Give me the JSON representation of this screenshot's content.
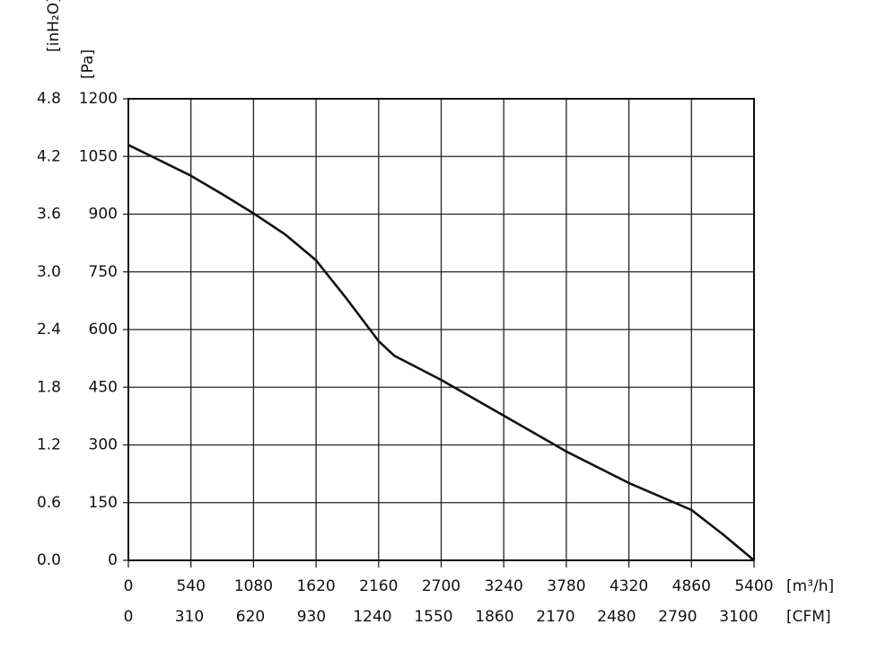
{
  "chart_data": {
    "type": "line",
    "x_label": "[m³/h]",
    "x2_label": "[CFM]",
    "y_label": "[Pa]",
    "y2_label": "[inH₂O]",
    "xlim": [
      0,
      5400
    ],
    "xticks": [
      0,
      540,
      1080,
      1620,
      2160,
      2700,
      3240,
      3780,
      4320,
      4860,
      5400
    ],
    "x2lim": [
      0,
      3178
    ],
    "x2ticks": [
      0,
      310,
      620,
      930,
      1240,
      1550,
      1860,
      2170,
      2480,
      2790,
      3100
    ],
    "ylim": [
      0,
      1200
    ],
    "yticks": [
      0,
      150,
      300,
      450,
      600,
      750,
      900,
      1050,
      1200
    ],
    "y2lim": [
      0,
      4.8
    ],
    "y2ticks": [
      {
        "value": 0,
        "label": "0.0"
      },
      0.6,
      1.2,
      1.8,
      2.4,
      {
        "value": 3,
        "label": "3.0"
      },
      3.6,
      4.2,
      4.8
    ],
    "grid": true,
    "x": [
      0,
      270,
      540,
      810,
      1080,
      1350,
      1620,
      1890,
      2160,
      2295,
      2430,
      2565,
      2700,
      3240,
      3780,
      4320,
      4860,
      5130,
      5400
    ],
    "series": [
      {
        "color": "#111111",
        "values": [
          1080,
          1040,
          1000,
          952,
          902,
          848,
          780,
          678,
          570,
          532,
          511,
          490,
          469,
          376,
          283,
          201,
          131,
          68,
          0
        ]
      }
    ]
  }
}
